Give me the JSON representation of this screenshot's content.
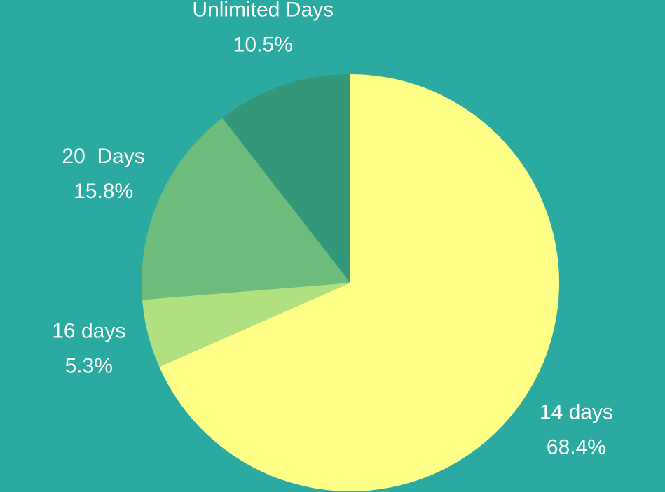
{
  "chart_data": {
    "type": "pie",
    "categories": [
      "14 days",
      "16 days",
      "20  Days",
      "Unlimited Days"
    ],
    "values": [
      68.4,
      5.3,
      15.8,
      10.5
    ],
    "value_labels": [
      "68.4%",
      "5.3%",
      "15.8%",
      "10.5%"
    ],
    "colors": [
      "#ffff88",
      "#b0e07f",
      "#6dbc7c",
      "#33977a"
    ]
  }
}
